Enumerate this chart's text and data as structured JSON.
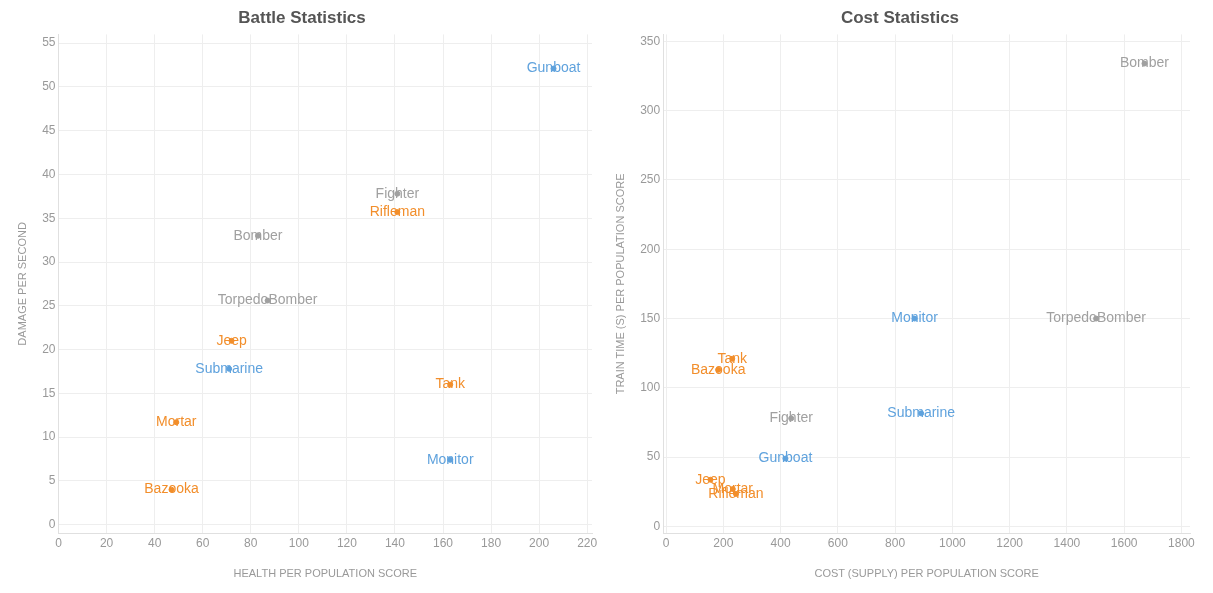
{
  "chart_data": [
    {
      "type": "scatter",
      "title": "Battle Statistics",
      "xlabel": "HEALTH PER POPULATION SCORE",
      "ylabel": "DAMAGE PER SECOND",
      "xlim": [
        0,
        222
      ],
      "xticks": [
        0,
        20,
        40,
        60,
        80,
        100,
        120,
        140,
        160,
        180,
        200,
        220
      ],
      "ylim": [
        -1,
        56
      ],
      "yticks": [
        0,
        5,
        10,
        15,
        20,
        25,
        30,
        35,
        40,
        45,
        50,
        55
      ],
      "grid": true,
      "marker": "circle",
      "series": [
        {
          "color": "#f28e2b",
          "x": [
            141,
            72,
            163,
            49,
            47
          ],
          "values": [
            35.7,
            21,
            16,
            11.7,
            4
          ],
          "value_labels": [
            "Rifleman",
            "Jeep",
            "Tank",
            "Mortar",
            "Bazooka"
          ]
        },
        {
          "color": "#a0a0a0",
          "x": [
            141,
            83,
            87
          ],
          "values": [
            37.8,
            33,
            25.6
          ],
          "value_labels": [
            "Fighter",
            "Bomber",
            "TorpedoBomber"
          ]
        },
        {
          "color": "#5fa2dd",
          "x": [
            206,
            71,
            163
          ],
          "values": [
            52.1,
            17.8,
            7.4
          ],
          "value_labels": [
            "Gunboat",
            "Submarine",
            "Monitor"
          ]
        }
      ]
    },
    {
      "type": "scatter",
      "title": "Cost Statistics",
      "xlabel": "COST (SUPPLY) PER POPULATION SCORE",
      "ylabel": "TRAIN TIME (S) PER POPULATION SCORE",
      "xlim": [
        -10,
        1830
      ],
      "xticks": [
        0,
        200,
        400,
        600,
        800,
        1000,
        1200,
        1400,
        1600,
        1800
      ],
      "ylim": [
        -5,
        355
      ],
      "yticks": [
        0,
        50,
        100,
        150,
        200,
        250,
        300,
        350
      ],
      "grid": true,
      "marker": "circle",
      "series": [
        {
          "color": "#f28e2b",
          "x": [
            244,
            155,
            231,
            233,
            182
          ],
          "values": [
            23.5,
            33.7,
            121,
            27,
            113
          ],
          "value_labels": [
            "Rifleman",
            "Jeep",
            "Tank",
            "Mortar",
            "Bazooka"
          ]
        },
        {
          "color": "#a0a0a0",
          "x": [
            437,
            1671,
            1502
          ],
          "values": [
            78,
            334,
            150
          ],
          "value_labels": [
            "Fighter",
            "Bomber",
            "TorpedoBomber"
          ]
        },
        {
          "color": "#5fa2dd",
          "x": [
            417,
            891,
            868
          ],
          "values": [
            49,
            81.6,
            150
          ],
          "value_labels": [
            "Gunboat",
            "Submarine",
            "Monitor"
          ]
        }
      ]
    }
  ]
}
